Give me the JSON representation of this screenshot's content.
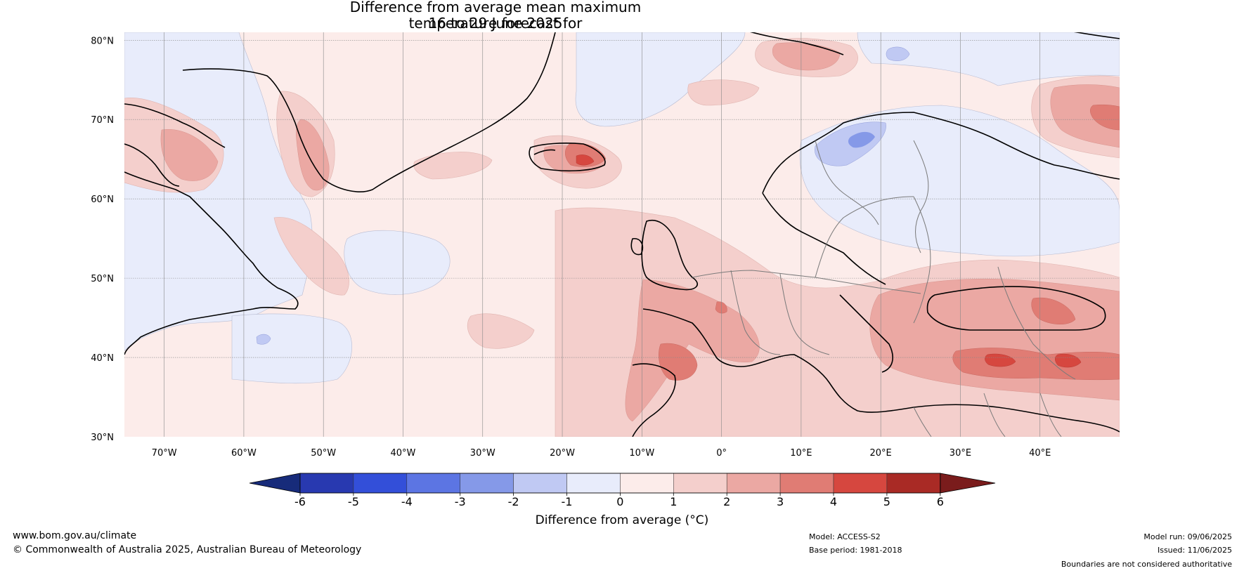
{
  "title": {
    "line1": "Difference from average mean maximum temperature forecast for",
    "line2": "16 to 29 June 2025"
  },
  "map": {
    "lat_labels": [
      "80°N",
      "70°N",
      "60°N",
      "50°N",
      "40°N",
      "30°N"
    ],
    "lon_labels": [
      "70°W",
      "60°W",
      "50°W",
      "40°W",
      "30°W",
      "20°W",
      "10°W",
      "0°",
      "10°E",
      "20°E",
      "30°E",
      "40°E"
    ],
    "lat_range": [
      30,
      81
    ],
    "lon_range": [
      -75,
      50
    ]
  },
  "colorbar": {
    "label": "Difference from average (°C)",
    "ticks": [
      "-6",
      "-5",
      "-4",
      "-3",
      "-2",
      "-1",
      "0",
      "1",
      "2",
      "3",
      "4",
      "5",
      "6"
    ],
    "colors": [
      "#172b7a",
      "#2839b0",
      "#334fd9",
      "#5c75e3",
      "#8599e8",
      "#c0c9f3",
      "#e8ecfb",
      "#fcecea",
      "#f4cfcc",
      "#eba8a3",
      "#e07c74",
      "#d6473f",
      "#a92a25",
      "#7a1c1c"
    ]
  },
  "footer": {
    "website": "www.bom.gov.au/climate",
    "copyright": "© Commonwealth of Australia 2025, Australian Bureau of Meteorology",
    "model": "Model: ACCESS-S2",
    "base_period": "Base period: 1981-2018",
    "model_run": "Model run: 09/06/2025",
    "issued": "Issued: 11/06/2025",
    "disclaimer": "Boundaries are not considered authoritative"
  }
}
